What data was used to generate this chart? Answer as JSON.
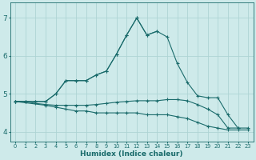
{
  "xlabel": "Humidex (Indice chaleur)",
  "bg_color": "#ceeaea",
  "line_color": "#1a6b6b",
  "grid_color": "#aed4d4",
  "tick_color": "#1a6b6b",
  "ylim": [
    3.75,
    7.4
  ],
  "yticks": [
    4,
    5,
    6,
    7
  ],
  "xlim": [
    -0.5,
    23.5
  ],
  "line_main_x": [
    0,
    1,
    2,
    3,
    4,
    5,
    6,
    7,
    8,
    9,
    10,
    11,
    12,
    13,
    14,
    15,
    16,
    17,
    18,
    19,
    20,
    21,
    22,
    23
  ],
  "line_main_y": [
    4.8,
    4.8,
    4.8,
    4.8,
    5.0,
    5.35,
    5.35,
    5.35,
    5.5,
    5.6,
    6.05,
    6.55,
    7.0,
    6.55,
    6.65,
    6.5,
    5.8,
    5.3,
    4.95,
    4.9,
    4.9,
    4.45,
    4.1,
    4.1
  ],
  "line_short_x": [
    0,
    1,
    2,
    3,
    4,
    5,
    6,
    7,
    8,
    9,
    10,
    11,
    12,
    13,
    14
  ],
  "line_short_y": [
    4.8,
    4.8,
    4.8,
    4.8,
    5.0,
    5.35,
    5.35,
    5.35,
    5.5,
    5.6,
    6.05,
    6.55,
    7.0,
    6.55,
    6.65
  ],
  "line_flat1_x": [
    0,
    1,
    2,
    3,
    4,
    5,
    6,
    7,
    8,
    9,
    10,
    11,
    12,
    13,
    14,
    15,
    16,
    17,
    18,
    19,
    20,
    21,
    22
  ],
  "line_flat1_y": [
    4.8,
    4.8,
    4.75,
    4.72,
    4.7,
    4.7,
    4.7,
    4.7,
    4.72,
    4.75,
    4.78,
    4.8,
    4.82,
    4.82,
    4.82,
    4.85,
    4.85,
    4.82,
    4.72,
    4.6,
    4.45,
    4.1,
    4.1
  ],
  "line_flat2_x": [
    0,
    3,
    4,
    5,
    6,
    7,
    8,
    9,
    10,
    11,
    12,
    13,
    14,
    15,
    16,
    17,
    18,
    19,
    20,
    21,
    22,
    23
  ],
  "line_flat2_y": [
    4.8,
    4.7,
    4.65,
    4.6,
    4.55,
    4.55,
    4.5,
    4.5,
    4.5,
    4.5,
    4.5,
    4.45,
    4.45,
    4.45,
    4.4,
    4.35,
    4.25,
    4.15,
    4.1,
    4.05,
    4.05,
    4.05
  ]
}
